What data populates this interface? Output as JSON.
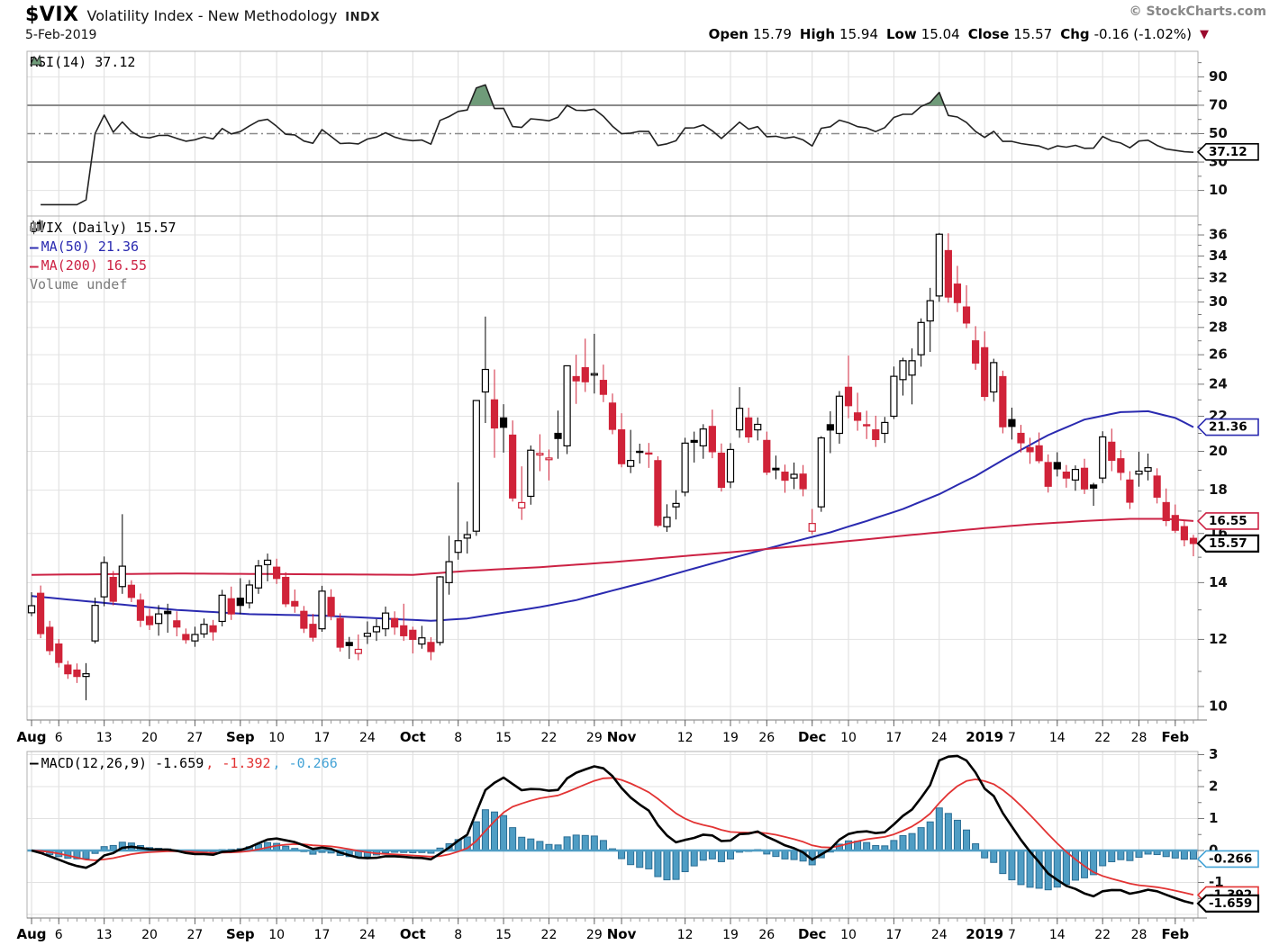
{
  "header": {
    "symbol": "$VIX",
    "title": "Volatility Index - New Methodology",
    "exchange": "INDX",
    "credit": "© StockCharts.com",
    "date": "5-Feb-2019",
    "quote": {
      "open_label": "Open",
      "open_value": "15.79",
      "high_label": "High",
      "high_value": "15.94",
      "low_label": "Low",
      "low_value": "15.04",
      "close_label": "Close",
      "close_value": "15.57",
      "chg_label": "Chg",
      "chg_value": "-0.16 (-1.02%)",
      "arrow": "▼"
    }
  },
  "panels": {
    "rsi": {
      "legend": "RSI(14) 37.12",
      "flag": "37.12"
    },
    "main": {
      "legend_symbol": "$VIX (Daily) 15.57",
      "legend_ma50": "MA(50) 21.36",
      "legend_ma200": "MA(200) 16.55",
      "legend_volume": "Volume undef",
      "flag_ma50": "21.36",
      "flag_ma200": "16.55",
      "flag_close": "15.57"
    },
    "macd": {
      "legend_macd": "MACD(12,26,9) -1.659",
      "legend_signal": ", -1.392",
      "legend_hist": ", -0.266",
      "flag_hist": "-0.266",
      "flag_signal": "-1.392",
      "flag_macd": "-1.659"
    }
  },
  "colors": {
    "up": "#000000",
    "down": "#d02339",
    "ma50": "#2a2ab0",
    "ma200": "#cc2244",
    "macd_line": "#000000",
    "signal_line": "#e23333",
    "hist_fill": "#4f9dc4",
    "hist_stroke": "#2a6d94",
    "rsi_line": "#222222",
    "rsi_fill": "#6f9b79",
    "rsi_band": "#8a8a8a",
    "grid": "#dcdcdc",
    "hgrid": "#e2e2e2",
    "border": "#b0b0b0",
    "axis_text": "#111111",
    "tick": "#777777",
    "flag_close": "#000000",
    "flag_rsi": "#000000"
  },
  "chart_data": {
    "type": "candlestick",
    "symbol": "$VIX",
    "period": "Daily",
    "price_range_log": [
      9.64,
      37.9
    ],
    "rsi": {
      "period": 14,
      "last": 37.12,
      "overbought": 70,
      "oversold": 30,
      "mid": 50,
      "axis_labels": [
        90,
        70,
        50,
        30,
        10
      ]
    },
    "macd": {
      "fast": 12,
      "slow": 26,
      "signal": 9,
      "last": -1.659,
      "signal_last": -1.392,
      "hist_last": -0.266,
      "axis_labels": [
        3,
        2,
        1,
        0,
        -1
      ],
      "ylim": [
        -2.14,
        3.14
      ]
    },
    "ma50_last": 21.36,
    "ma200_last": 16.55,
    "close_last": 15.57,
    "main_axis_labels": [
      36,
      34,
      32,
      30,
      28,
      26,
      24,
      22,
      20,
      18,
      16,
      14,
      12,
      10
    ],
    "x_ticks": [
      {
        "label": "Aug",
        "idx": 0,
        "bold": true
      },
      {
        "label": "6",
        "idx": 3
      },
      {
        "label": "13",
        "idx": 8
      },
      {
        "label": "20",
        "idx": 13
      },
      {
        "label": "27",
        "idx": 18
      },
      {
        "label": "Sep",
        "idx": 23,
        "bold": true
      },
      {
        "label": "10",
        "idx": 27
      },
      {
        "label": "17",
        "idx": 32
      },
      {
        "label": "24",
        "idx": 37
      },
      {
        "label": "Oct",
        "idx": 42,
        "bold": true
      },
      {
        "label": "8",
        "idx": 47
      },
      {
        "label": "15",
        "idx": 52
      },
      {
        "label": "22",
        "idx": 57
      },
      {
        "label": "29",
        "idx": 62
      },
      {
        "label": "Nov",
        "idx": 65,
        "bold": true
      },
      {
        "label": "12",
        "idx": 72
      },
      {
        "label": "19",
        "idx": 77
      },
      {
        "label": "26",
        "idx": 81
      },
      {
        "label": "Dec",
        "idx": 86,
        "bold": true
      },
      {
        "label": "10",
        "idx": 90
      },
      {
        "label": "17",
        "idx": 95
      },
      {
        "label": "24",
        "idx": 100
      },
      {
        "label": "2019",
        "idx": 105,
        "bold": true
      },
      {
        "label": "7",
        "idx": 108
      },
      {
        "label": "14",
        "idx": 113
      },
      {
        "label": "22",
        "idx": 118
      },
      {
        "label": "28",
        "idx": 122
      },
      {
        "label": "Feb",
        "idx": 126,
        "bold": true
      }
    ],
    "ma50_keypoints": [
      [
        0,
        13.5
      ],
      [
        8,
        13.25
      ],
      [
        16,
        13.0
      ],
      [
        24,
        12.85
      ],
      [
        32,
        12.8
      ],
      [
        40,
        12.68
      ],
      [
        44,
        12.62
      ],
      [
        48,
        12.7
      ],
      [
        52,
        12.9
      ],
      [
        56,
        13.1
      ],
      [
        60,
        13.35
      ],
      [
        64,
        13.7
      ],
      [
        68,
        14.05
      ],
      [
        72,
        14.45
      ],
      [
        76,
        14.85
      ],
      [
        80,
        15.25
      ],
      [
        84,
        15.65
      ],
      [
        88,
        16.05
      ],
      [
        92,
        16.55
      ],
      [
        96,
        17.1
      ],
      [
        100,
        17.8
      ],
      [
        104,
        18.7
      ],
      [
        108,
        19.8
      ],
      [
        112,
        20.9
      ],
      [
        116,
        21.8
      ],
      [
        120,
        22.25
      ],
      [
        123,
        22.3
      ],
      [
        126,
        21.9
      ],
      [
        128,
        21.36
      ]
    ],
    "ma200_keypoints": [
      [
        0,
        14.3
      ],
      [
        16,
        14.35
      ],
      [
        32,
        14.32
      ],
      [
        42,
        14.3
      ],
      [
        48,
        14.45
      ],
      [
        56,
        14.6
      ],
      [
        64,
        14.8
      ],
      [
        72,
        15.05
      ],
      [
        80,
        15.3
      ],
      [
        88,
        15.6
      ],
      [
        96,
        15.9
      ],
      [
        104,
        16.2
      ],
      [
        110,
        16.4
      ],
      [
        116,
        16.55
      ],
      [
        121,
        16.65
      ],
      [
        125,
        16.65
      ],
      [
        128,
        16.55
      ]
    ],
    "candles": [
      [
        "Aug 1",
        12.9,
        13.64,
        12.78,
        13.15
      ],
      [
        "Aug 2",
        13.6,
        13.89,
        12.04,
        12.19
      ],
      [
        "Aug 3",
        12.4,
        12.62,
        11.5,
        11.64
      ],
      [
        "Aug 6",
        11.85,
        12.01,
        11.12,
        11.27
      ],
      [
        "Aug 7",
        11.19,
        11.32,
        10.78,
        10.93
      ],
      [
        "Aug 8",
        11.04,
        11.24,
        10.66,
        10.85
      ],
      [
        "Aug 9",
        10.85,
        11.25,
        10.17,
        10.93
      ],
      [
        "Aug 10",
        11.95,
        13.44,
        11.87,
        13.16
      ],
      [
        "Aug 13",
        13.47,
        15.03,
        13.13,
        14.78
      ],
      [
        "Aug 14",
        14.2,
        14.45,
        13.16,
        13.31
      ],
      [
        "Aug 15",
        13.85,
        16.86,
        13.58,
        14.64
      ],
      [
        "Aug 16",
        13.9,
        14.09,
        13.28,
        13.45
      ],
      [
        "Aug 17",
        13.35,
        13.59,
        12.41,
        12.64
      ],
      [
        "Aug 20",
        12.77,
        13.04,
        12.31,
        12.49
      ],
      [
        "Aug 21",
        12.53,
        13.17,
        12.12,
        12.86
      ],
      [
        "Aug 22",
        12.95,
        13.22,
        12.22,
        12.87
      ],
      [
        "Aug 23",
        12.62,
        12.95,
        12.1,
        12.41
      ],
      [
        "Aug 24",
        12.16,
        12.36,
        11.86,
        11.99
      ],
      [
        "Aug 27",
        11.95,
        12.42,
        11.76,
        12.16
      ],
      [
        "Aug 28",
        12.18,
        12.7,
        12.05,
        12.5
      ],
      [
        "Aug 29",
        12.45,
        12.65,
        11.96,
        12.25
      ],
      [
        "Aug 30",
        12.6,
        13.73,
        12.43,
        13.53
      ],
      [
        "Aug 31",
        13.4,
        13.85,
        12.65,
        12.86
      ],
      [
        "Sep 4",
        13.42,
        14.17,
        12.85,
        13.16
      ],
      [
        "Sep 5",
        13.25,
        14.1,
        13.05,
        13.91
      ],
      [
        "Sep 6",
        13.8,
        14.89,
        13.58,
        14.65
      ],
      [
        "Sep 7",
        14.7,
        15.15,
        14.05,
        14.88
      ],
      [
        "Sep 10",
        14.6,
        14.94,
        13.95,
        14.16
      ],
      [
        "Sep 11",
        14.2,
        14.4,
        13.1,
        13.22
      ],
      [
        "Sep 12",
        13.3,
        13.74,
        12.9,
        13.14
      ],
      [
        "Sep 13",
        12.95,
        13.14,
        12.21,
        12.37
      ],
      [
        "Sep 14",
        12.5,
        12.86,
        11.93,
        12.07
      ],
      [
        "Sep 17",
        12.35,
        13.88,
        12.25,
        13.68
      ],
      [
        "Sep 18",
        13.45,
        13.75,
        12.64,
        12.79
      ],
      [
        "Sep 19",
        12.7,
        12.88,
        11.61,
        11.75
      ],
      [
        "Sep 20",
        11.9,
        12.08,
        11.38,
        11.8
      ],
      [
        "Sep 21",
        11.55,
        12.16,
        11.34,
        11.68
      ],
      [
        "Sep 24",
        12.1,
        12.6,
        11.85,
        12.2
      ],
      [
        "Sep 25",
        12.25,
        12.68,
        11.95,
        12.42
      ],
      [
        "Sep 26",
        12.35,
        13.12,
        12.1,
        12.89
      ],
      [
        "Sep 27",
        12.7,
        12.95,
        12.15,
        12.41
      ],
      [
        "Sep 28",
        12.45,
        13.22,
        11.95,
        12.12
      ],
      [
        "Oct 1",
        12.3,
        12.42,
        11.55,
        12.0
      ],
      [
        "Oct 2",
        11.85,
        12.45,
        11.7,
        12.05
      ],
      [
        "Oct 3",
        11.9,
        12.07,
        11.34,
        11.61
      ],
      [
        "Oct 4",
        11.9,
        14.25,
        11.8,
        14.22
      ],
      [
        "Oct 5",
        14.0,
        15.9,
        13.55,
        14.82
      ],
      [
        "Oct 8",
        15.2,
        18.38,
        14.9,
        15.69
      ],
      [
        "Oct 9",
        15.8,
        16.53,
        15.15,
        15.95
      ],
      [
        "Oct 10",
        16.1,
        22.96,
        15.9,
        22.96
      ],
      [
        "Oct 11",
        23.5,
        28.84,
        21.6,
        24.98
      ],
      [
        "Oct 12",
        23.0,
        24.98,
        19.65,
        21.31
      ],
      [
        "Oct 15",
        21.9,
        22.73,
        19.93,
        21.35
      ],
      [
        "Oct 16",
        20.9,
        21.75,
        17.45,
        17.62
      ],
      [
        "Oct 17",
        17.15,
        19.2,
        16.6,
        17.4
      ],
      [
        "Oct 18",
        17.7,
        20.32,
        17.3,
        20.06
      ],
      [
        "Oct 19",
        19.8,
        20.95,
        18.95,
        19.89
      ],
      [
        "Oct 22",
        19.55,
        20.1,
        18.48,
        19.64
      ],
      [
        "Oct 23",
        21.0,
        22.34,
        19.6,
        20.71
      ],
      [
        "Oct 24",
        20.3,
        25.23,
        19.85,
        25.23
      ],
      [
        "Oct 25",
        24.5,
        26.0,
        22.75,
        24.22
      ],
      [
        "Oct 26",
        25.1,
        27.16,
        23.5,
        24.16
      ],
      [
        "Oct 29",
        24.6,
        27.52,
        23.4,
        24.7
      ],
      [
        "Oct 30",
        24.25,
        25.31,
        22.86,
        23.35
      ],
      [
        "Oct 31",
        22.8,
        23.4,
        20.95,
        21.23
      ],
      [
        "Nov 1",
        21.2,
        22.18,
        19.15,
        19.34
      ],
      [
        "Nov 2",
        19.2,
        21.2,
        18.85,
        19.51
      ],
      [
        "Nov 5",
        20.0,
        20.42,
        19.35,
        19.96
      ],
      [
        "Nov 6",
        19.9,
        20.46,
        19.12,
        19.91
      ],
      [
        "Nov 7",
        19.5,
        19.73,
        16.28,
        16.36
      ],
      [
        "Nov 8",
        16.3,
        17.32,
        16.07,
        16.72
      ],
      [
        "Nov 9",
        17.2,
        18.0,
        16.62,
        17.36
      ],
      [
        "Nov 12",
        17.9,
        20.75,
        17.7,
        20.45
      ],
      [
        "Nov 13",
        20.6,
        21.1,
        19.4,
        20.5
      ],
      [
        "Nov 14",
        20.3,
        21.53,
        19.6,
        21.25
      ],
      [
        "Nov 15",
        21.4,
        22.4,
        19.63,
        19.98
      ],
      [
        "Nov 16",
        19.9,
        20.43,
        17.93,
        18.14
      ],
      [
        "Nov 19",
        18.4,
        20.45,
        18.1,
        20.1
      ],
      [
        "Nov 20",
        21.2,
        23.81,
        20.75,
        22.48
      ],
      [
        "Nov 21",
        21.9,
        22.52,
        20.47,
        20.8
      ],
      [
        "Nov 23",
        21.2,
        21.93,
        20.6,
        21.52
      ],
      [
        "Nov 26",
        20.6,
        21.1,
        18.75,
        18.9
      ],
      [
        "Nov 27",
        19.1,
        19.77,
        18.54,
        19.02
      ],
      [
        "Nov 28",
        18.9,
        19.29,
        17.87,
        18.49
      ],
      [
        "Nov 29",
        18.6,
        19.4,
        18.05,
        18.79
      ],
      [
        "Nov 30",
        18.8,
        19.27,
        17.7,
        18.07
      ],
      [
        "Dec 3",
        16.1,
        17.1,
        15.96,
        16.44
      ],
      [
        "Dec 4",
        17.2,
        20.84,
        16.97,
        20.74
      ],
      [
        "Dec 6",
        21.5,
        22.3,
        19.9,
        21.19
      ],
      [
        "Dec 7",
        21.0,
        23.56,
        20.42,
        23.23
      ],
      [
        "Dec 10",
        23.8,
        25.94,
        21.88,
        22.64
      ],
      [
        "Dec 11",
        22.2,
        23.45,
        21.15,
        21.76
      ],
      [
        "Dec 12",
        21.5,
        22.33,
        20.68,
        21.46
      ],
      [
        "Dec 13",
        21.2,
        22.03,
        20.24,
        20.65
      ],
      [
        "Dec 14",
        21.0,
        21.96,
        20.46,
        21.63
      ],
      [
        "Dec 17",
        22.0,
        25.18,
        21.83,
        24.52
      ],
      [
        "Dec 18",
        24.3,
        25.79,
        23.27,
        25.58
      ],
      [
        "Dec 19",
        24.6,
        26.45,
        22.72,
        25.58
      ],
      [
        "Dec 20",
        26.0,
        28.7,
        25.17,
        28.38
      ],
      [
        "Dec 21",
        28.5,
        31.18,
        26.2,
        30.11
      ],
      [
        "Dec 24",
        30.5,
        36.2,
        30.02,
        36.07
      ],
      [
        "Dec 26",
        34.5,
        36.16,
        29.95,
        30.41
      ],
      [
        "Dec 27",
        31.5,
        33.1,
        29.2,
        29.96
      ],
      [
        "Dec 28",
        29.6,
        31.4,
        27.94,
        28.34
      ],
      [
        "Dec 31",
        27.0,
        28.1,
        24.96,
        25.42
      ],
      [
        "Jan 2",
        26.5,
        27.7,
        22.94,
        23.22
      ],
      [
        "Jan 3",
        23.5,
        25.72,
        22.88,
        25.45
      ],
      [
        "Jan 4",
        24.5,
        24.9,
        21.0,
        21.38
      ],
      [
        "Jan 7",
        21.8,
        22.52,
        20.65,
        21.4
      ],
      [
        "Jan 8",
        21.0,
        21.49,
        19.94,
        20.47
      ],
      [
        "Jan 9",
        20.2,
        20.75,
        19.33,
        19.98
      ],
      [
        "Jan 10",
        20.3,
        21.05,
        19.36,
        19.5
      ],
      [
        "Jan 11",
        19.4,
        19.83,
        17.88,
        18.19
      ],
      [
        "Jan 14",
        19.4,
        19.95,
        18.68,
        19.07
      ],
      [
        "Jan 15",
        18.9,
        19.27,
        18.12,
        18.6
      ],
      [
        "Jan 16",
        18.5,
        19.25,
        17.97,
        19.04
      ],
      [
        "Jan 17",
        19.1,
        19.6,
        17.81,
        18.06
      ],
      [
        "Jan 18",
        18.25,
        18.36,
        17.25,
        18.1
      ],
      [
        "Jan 22",
        18.6,
        21.12,
        18.34,
        20.8
      ],
      [
        "Jan 23",
        20.5,
        21.27,
        18.95,
        19.52
      ],
      [
        "Jan 24",
        19.6,
        20.07,
        18.49,
        18.89
      ],
      [
        "Jan 25",
        18.5,
        18.95,
        17.1,
        17.42
      ],
      [
        "Jan 28",
        18.8,
        19.98,
        18.17,
        18.95
      ],
      [
        "Jan 29",
        18.95,
        19.88,
        18.48,
        19.13
      ],
      [
        "Jan 30",
        18.7,
        19.1,
        17.36,
        17.66
      ],
      [
        "Jan 31",
        17.4,
        18.08,
        16.32,
        16.57
      ],
      [
        "Feb 1",
        16.8,
        17.31,
        16.02,
        16.14
      ],
      [
        "Feb 4",
        16.3,
        16.58,
        15.45,
        15.73
      ],
      [
        "Feb 5",
        15.79,
        15.94,
        15.04,
        15.57
      ]
    ]
  }
}
